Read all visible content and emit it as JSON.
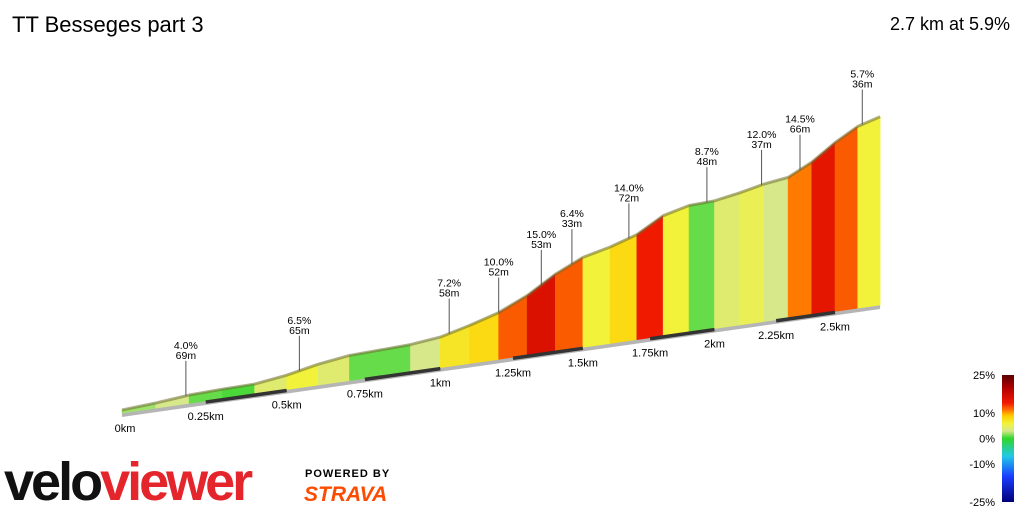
{
  "chart_data": {
    "type": "elevation-profile",
    "title": "TT Besseges part 3",
    "subtitle": "2.7 km at 5.9%",
    "xlim": [
      0,
      2.7
    ],
    "xticks": [
      {
        "value": 0,
        "label": "0km"
      },
      {
        "value": 0.25,
        "label": "0.25km"
      },
      {
        "value": 0.5,
        "label": "0.5km"
      },
      {
        "value": 0.75,
        "label": "0.75km"
      },
      {
        "value": 1,
        "label": "1km"
      },
      {
        "value": 1.25,
        "label": "1.25km"
      },
      {
        "value": 1.5,
        "label": "1.5km"
      },
      {
        "value": 1.75,
        "label": "1.75km"
      },
      {
        "value": 2,
        "label": "2km"
      },
      {
        "value": 2.25,
        "label": "2.25km"
      },
      {
        "value": 2.5,
        "label": "2.5km"
      }
    ],
    "x": [
      0,
      0.1,
      0.2,
      0.3,
      0.4,
      0.5,
      0.6,
      0.7,
      0.8,
      0.9,
      1.0,
      1.1,
      1.2,
      1.3,
      1.4,
      1.5,
      1.6,
      1.7,
      1.8,
      1.9,
      2.0,
      2.1,
      2.2,
      2.3,
      2.4,
      2.5,
      2.6
    ],
    "values": [
      2,
      3,
      1,
      0.5,
      4,
      6,
      4,
      1,
      1,
      3,
      7,
      8,
      12,
      16,
      12,
      6,
      8,
      14,
      6,
      1,
      4,
      5,
      3,
      11,
      15,
      12,
      6
    ],
    "annotations": [
      {
        "x": 0.19,
        "value": 4.0,
        "label": "4.0%",
        "length": 69,
        "length_label": "69m"
      },
      {
        "x": 0.54,
        "value": 6.5,
        "label": "6.5%",
        "length": 65,
        "length_label": "65m"
      },
      {
        "x": 1.03,
        "value": 7.2,
        "label": "7.2%",
        "length": 58,
        "length_label": "58m"
      },
      {
        "x": 1.2,
        "value": 10.0,
        "label": "10.0%",
        "length": 52,
        "length_label": "52m"
      },
      {
        "x": 1.35,
        "value": 15.0,
        "label": "15.0%",
        "length": 53,
        "length_label": "53m"
      },
      {
        "x": 1.46,
        "value": 6.4,
        "label": "6.4%",
        "length": 33,
        "length_label": "33m"
      },
      {
        "x": 1.67,
        "value": 14.0,
        "label": "14.0%",
        "length": 72,
        "length_label": "72m"
      },
      {
        "x": 1.97,
        "value": 8.7,
        "label": "8.7%",
        "length": 48,
        "length_label": "48m"
      },
      {
        "x": 2.19,
        "value": 12.0,
        "label": "12.0%",
        "length": 37,
        "length_label": "37m"
      },
      {
        "x": 2.35,
        "value": 14.5,
        "label": "14.5%",
        "length": 66,
        "length_label": "66m"
      },
      {
        "x": 2.62,
        "value": 5.7,
        "label": "5.7%",
        "length": 36,
        "length_label": "36m"
      }
    ],
    "colorbar": {
      "ticks": [
        {
          "value": 25,
          "label": "25%"
        },
        {
          "value": 10,
          "label": "10%"
        },
        {
          "value": 0,
          "label": "0%"
        },
        {
          "value": -10,
          "label": "-10%"
        },
        {
          "value": -25,
          "label": "-25%"
        }
      ]
    },
    "colorscale": [
      {
        "value": -25,
        "color": "#00007a"
      },
      {
        "value": -15,
        "color": "#1a3cff"
      },
      {
        "value": -7,
        "color": "#22c8e8"
      },
      {
        "value": 0,
        "color": "#2fd62a"
      },
      {
        "value": 3,
        "color": "#d6e88a"
      },
      {
        "value": 6,
        "color": "#f2f23a"
      },
      {
        "value": 9,
        "color": "#ffcc00"
      },
      {
        "value": 11,
        "color": "#ff7a00"
      },
      {
        "value": 14,
        "color": "#f01a00"
      },
      {
        "value": 20,
        "color": "#b00000"
      },
      {
        "value": 25,
        "color": "#5a0000"
      }
    ]
  },
  "branding": {
    "logo_start": "velo",
    "logo_end": "viewer",
    "powered_by": "POWERED BY",
    "strava": "STRAVA"
  }
}
